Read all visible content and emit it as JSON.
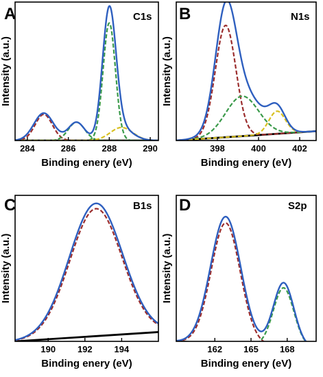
{
  "chart_data": [
    {
      "type": "line",
      "panel_letter": "A",
      "title": "C1s",
      "xlabel": "Binding enery (eV)",
      "ylabel": "Intensity (a.u.)",
      "xlim": [
        283.4,
        290.4
      ],
      "ylim": [
        0,
        1.06
      ],
      "xticks": [
        284,
        286,
        288,
        290
      ],
      "ytick_labels": false,
      "background": [
        [
          283.4,
          0.0
        ],
        [
          290.4,
          0.0
        ]
      ],
      "series": [
        {
          "color": "#2e5fbf",
          "style": "solid",
          "peaks": [
            [
              284.8,
              0.21,
              0.48
            ],
            [
              286.4,
              0.14,
              0.4
            ],
            [
              288.0,
              0.98,
              0.33
            ],
            [
              288.6,
              0.09,
              0.55
            ]
          ]
        },
        {
          "color": "#9b2d2d",
          "style": "dashed",
          "peaks": [
            [
              284.8,
              0.2,
              0.42
            ]
          ]
        },
        {
          "color": "#3a9a4a",
          "style": "dashed",
          "peaks": [
            [
              286.4,
              0.14,
              0.4
            ]
          ]
        },
        {
          "color": "#3a9a4a",
          "style": "dashed",
          "peaks": [
            [
              288.0,
              0.9,
              0.3
            ]
          ]
        },
        {
          "color": "#d8c020",
          "style": "dashed",
          "peaks": [
            [
              288.6,
              0.1,
              0.55
            ]
          ]
        }
      ]
    },
    {
      "type": "line",
      "panel_letter": "B",
      "title": "N1s",
      "xlabel": "Binding enery (eV)",
      "ylabel": "Intensity (a.u.)",
      "xlim": [
        396.0,
        402.8
      ],
      "ylim": [
        0,
        1.04
      ],
      "xticks": [
        398,
        400,
        402
      ],
      "ytick_labels": false,
      "background": [
        [
          396.0,
          0.0
        ],
        [
          402.8,
          0.07
        ]
      ],
      "series": [
        {
          "color": "#2e5fbf",
          "style": "solid",
          "peaks": [
            [
              398.4,
              0.8,
              0.5
            ],
            [
              399.2,
              0.33,
              0.9
            ],
            [
              400.9,
              0.17,
              0.4
            ]
          ]
        },
        {
          "color": "#9b2d2d",
          "style": "dashed",
          "peaks": [
            [
              398.4,
              0.84,
              0.5
            ]
          ]
        },
        {
          "color": "#3a9a4a",
          "style": "dashed",
          "peaks": [
            [
              399.2,
              0.3,
              0.8
            ]
          ]
        },
        {
          "color": "#d8c020",
          "style": "dashed",
          "peaks": [
            [
              400.9,
              0.17,
              0.4
            ]
          ]
        }
      ]
    },
    {
      "type": "line",
      "panel_letter": "C",
      "title": "B1s",
      "xlabel": "Binding enery (eV)",
      "ylabel": "Intensity (a.u.)",
      "xlim": [
        188.2,
        196.0
      ],
      "ylim": [
        0,
        1.1
      ],
      "xticks": [
        190,
        192,
        194
      ],
      "ytick_labels": false,
      "background": [
        [
          188.2,
          0.0
        ],
        [
          196.0,
          0.07
        ]
      ],
      "series": [
        {
          "color": "#2e5fbf",
          "style": "solid",
          "peaks": [
            [
              192.6,
              1.0,
              1.45
            ]
          ]
        },
        {
          "color": "#9b2d2d",
          "style": "dashed",
          "peaks": [
            [
              192.6,
              0.96,
              1.42
            ]
          ]
        }
      ]
    },
    {
      "type": "line",
      "panel_letter": "D",
      "title": "S2p",
      "xlabel": "Binding enery (eV)",
      "ylabel": "Intensity (a.u.)",
      "xlim": [
        158.8,
        170.4
      ],
      "ylim": [
        0,
        1.15
      ],
      "xticks": [
        162,
        165,
        168
      ],
      "ytick_labels": false,
      "background": [
        [
          158.8,
          0.0
        ],
        [
          170.4,
          -0.05
        ]
      ],
      "series": [
        {
          "color": "#2e5fbf",
          "style": "solid",
          "peaks": [
            [
              162.9,
              1.0,
              1.25
            ],
            [
              167.7,
              0.5,
              0.85
            ]
          ]
        },
        {
          "color": "#9b2d2d",
          "style": "dashed",
          "peaks": [
            [
              162.9,
              0.95,
              1.2
            ]
          ]
        },
        {
          "color": "#3a9a4a",
          "style": "dashed",
          "peaks": [
            [
              167.7,
              0.46,
              0.85
            ]
          ]
        }
      ]
    }
  ]
}
